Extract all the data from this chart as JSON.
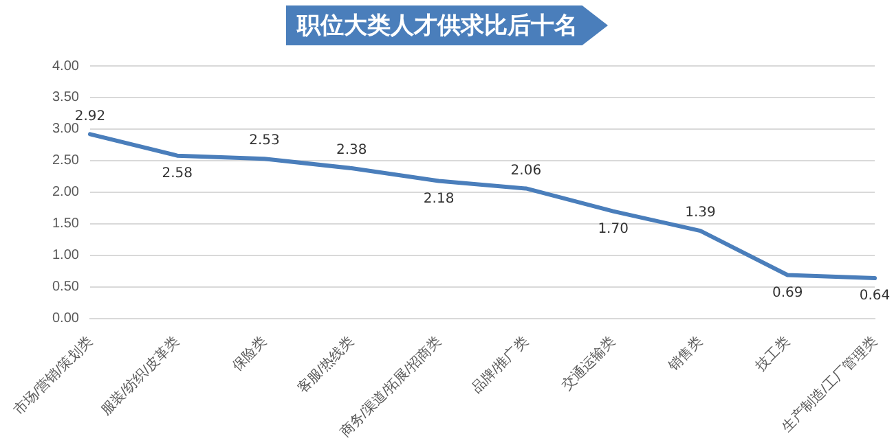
{
  "chart_data": {
    "type": "line",
    "title": "职位大类人才供求比后十名",
    "categories": [
      "市场/营销/策划类",
      "服装/纺织/皮革类",
      "保险类",
      "客服/热线类",
      "商务/渠道/拓展/招商类",
      "品牌/推广类",
      "交通运输类",
      "销售类",
      "技工类",
      "生产制造/工厂管理类"
    ],
    "series": [
      {
        "color": "#4a7ebb",
        "values": [
          2.92,
          2.58,
          2.53,
          2.38,
          2.18,
          2.06,
          1.7,
          1.39,
          0.69,
          0.64
        ]
      }
    ],
    "ylim": [
      0,
      4
    ],
    "yticks": [
      {
        "value": 0,
        "label": "0.00"
      },
      {
        "value": 0.5,
        "label": "0.50"
      },
      {
        "value": 1,
        "label": "1.00"
      },
      {
        "value": 1.5,
        "label": "1.50"
      },
      {
        "value": 2,
        "label": "2.00"
      },
      {
        "value": 2.5,
        "label": "2.50"
      },
      {
        "value": 3,
        "label": "3.00"
      },
      {
        "value": 3.5,
        "label": "3.50"
      },
      {
        "value": 4,
        "label": "4.00"
      }
    ],
    "value_labels": [
      "2.92",
      "2.58",
      "2.53",
      "2.38",
      "2.18",
      "2.06",
      "1.70",
      "1.39",
      "0.69",
      "0.64"
    ],
    "grid": "y",
    "legend": false,
    "marker": "none",
    "line_style": "solid"
  }
}
